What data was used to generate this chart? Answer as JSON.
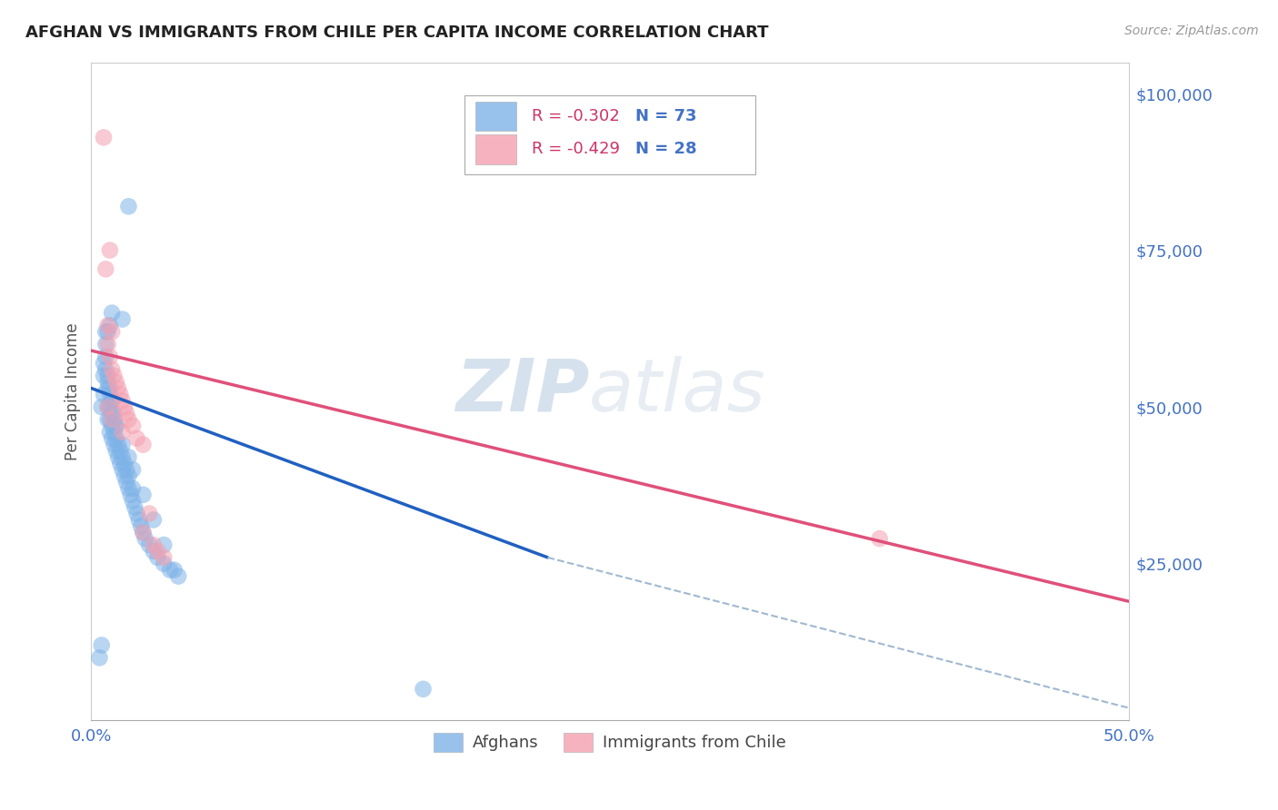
{
  "title": "AFGHAN VS IMMIGRANTS FROM CHILE PER CAPITA INCOME CORRELATION CHART",
  "source": "Source: ZipAtlas.com",
  "ylabel": "Per Capita Income",
  "yticks": [
    0,
    25000,
    50000,
    75000,
    100000
  ],
  "ytick_labels": [
    "",
    "$25,000",
    "$50,000",
    "$75,000",
    "$100,000"
  ],
  "xlim": [
    0.0,
    0.5
  ],
  "ylim": [
    0,
    105000
  ],
  "legend_blue_label": "R = -0.302   N = 73",
  "legend_pink_label": "R = -0.429   N = 28",
  "legend_bottom_blue": "Afghans",
  "legend_bottom_pink": "Immigrants from Chile",
  "blue_color": "#7eb3e8",
  "pink_color": "#f4a0b0",
  "blue_line_color": "#2060c0",
  "pink_line_color": "#e0507a",
  "dashed_line_color": "#a0b8d0",
  "watermark_zip": "ZIP",
  "watermark_atlas": "atlas",
  "xtick_positions": [
    0.0,
    0.1,
    0.2,
    0.3,
    0.4,
    0.5
  ],
  "xtick_labels": [
    "0.0%",
    "",
    "",
    "",
    "",
    "50.0%"
  ],
  "blue_scatter_x": [
    0.004,
    0.005,
    0.005,
    0.006,
    0.006,
    0.007,
    0.007,
    0.007,
    0.008,
    0.008,
    0.008,
    0.008,
    0.008,
    0.009,
    0.009,
    0.009,
    0.009,
    0.009,
    0.01,
    0.01,
    0.01,
    0.01,
    0.01,
    0.011,
    0.011,
    0.011,
    0.012,
    0.012,
    0.012,
    0.013,
    0.013,
    0.014,
    0.014,
    0.015,
    0.015,
    0.015,
    0.016,
    0.016,
    0.017,
    0.017,
    0.018,
    0.018,
    0.018,
    0.019,
    0.02,
    0.02,
    0.021,
    0.022,
    0.023,
    0.024,
    0.025,
    0.026,
    0.028,
    0.03,
    0.032,
    0.035,
    0.038,
    0.042,
    0.006,
    0.007,
    0.008,
    0.009,
    0.01,
    0.011,
    0.012,
    0.015,
    0.018,
    0.02,
    0.025,
    0.03,
    0.035,
    0.04,
    0.16
  ],
  "blue_scatter_y": [
    10000,
    12000,
    50000,
    52000,
    55000,
    58000,
    60000,
    62000,
    48000,
    50000,
    53000,
    55000,
    62000,
    46000,
    48000,
    50000,
    52000,
    63000,
    45000,
    47000,
    49000,
    51000,
    65000,
    44000,
    46000,
    48000,
    43000,
    45000,
    47000,
    42000,
    44000,
    41000,
    43000,
    40000,
    42000,
    64000,
    39000,
    41000,
    38000,
    40000,
    37000,
    39000,
    82000,
    36000,
    35000,
    37000,
    34000,
    33000,
    32000,
    31000,
    30000,
    29000,
    28000,
    27000,
    26000,
    25000,
    24000,
    23000,
    57000,
    56000,
    54000,
    53000,
    51000,
    49000,
    47000,
    44000,
    42000,
    40000,
    36000,
    32000,
    28000,
    24000,
    5000
  ],
  "pink_scatter_x": [
    0.006,
    0.007,
    0.008,
    0.008,
    0.009,
    0.009,
    0.01,
    0.01,
    0.011,
    0.012,
    0.013,
    0.014,
    0.015,
    0.016,
    0.017,
    0.018,
    0.02,
    0.022,
    0.025,
    0.025,
    0.028,
    0.03,
    0.032,
    0.035,
    0.38,
    0.008,
    0.01,
    0.015
  ],
  "pink_scatter_y": [
    93000,
    72000,
    60000,
    63000,
    58000,
    75000,
    56000,
    62000,
    55000,
    54000,
    53000,
    52000,
    51000,
    50000,
    49000,
    48000,
    47000,
    45000,
    44000,
    30000,
    33000,
    28000,
    27000,
    26000,
    29000,
    50000,
    48000,
    46000
  ],
  "blue_trendline_x": [
    0.0,
    0.22
  ],
  "blue_trendline_y": [
    53000,
    26000
  ],
  "pink_trendline_x": [
    0.0,
    0.5
  ],
  "pink_trendline_y": [
    59000,
    19000
  ],
  "dashed_trendline_x": [
    0.22,
    0.5
  ],
  "dashed_trendline_y": [
    26000,
    2000
  ]
}
